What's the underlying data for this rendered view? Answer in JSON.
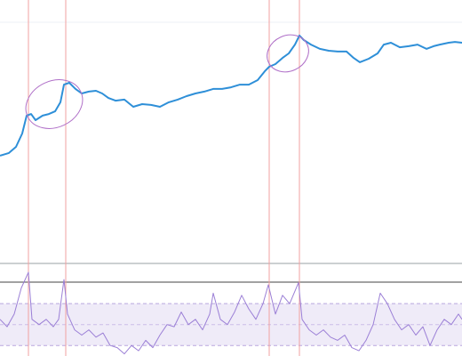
{
  "chart_data": [
    {
      "type": "line",
      "color": "#2e8fd8",
      "x": [
        0,
        10,
        18,
        25,
        30,
        35,
        40,
        48,
        55,
        62,
        68,
        72,
        78,
        85,
        92,
        100,
        108,
        115,
        122,
        130,
        140,
        150,
        160,
        170,
        180,
        190,
        200,
        210,
        220,
        230,
        240,
        250,
        260,
        270,
        280,
        290,
        298,
        303,
        310,
        318,
        325,
        332,
        337,
        342,
        350,
        360,
        370,
        380,
        390,
        398,
        405,
        415,
        425,
        432,
        440,
        450,
        460,
        470,
        480,
        488,
        495,
        505,
        512,
        520
      ],
      "values": [
        41.7,
        42.7,
        45,
        50,
        56.7,
        57.3,
        55,
        56.7,
        57.3,
        58.3,
        61.7,
        68.3,
        69,
        66.7,
        65,
        65.7,
        66,
        65,
        63.3,
        62.3,
        62.7,
        60,
        61,
        60.7,
        60,
        61.7,
        62.7,
        64,
        65,
        65.7,
        66.7,
        66.7,
        67.3,
        68.3,
        68.3,
        70,
        73.3,
        75,
        76,
        78.3,
        80,
        83.3,
        86.7,
        85,
        83.3,
        81.7,
        81,
        80.7,
        80.7,
        78.3,
        76.7,
        78,
        80,
        83.3,
        84,
        82.3,
        82.7,
        83.3,
        81.7,
        82.7,
        83.3,
        84,
        84.3,
        84
      ],
      "xlim": [
        0,
        520
      ],
      "ylim": [
        0,
        100
      ],
      "vlines": [
        32,
        74,
        303,
        337
      ]
    },
    {
      "type": "line",
      "color": "#9b7fd6",
      "x": [
        0,
        8,
        16,
        24,
        32,
        36,
        44,
        52,
        60,
        66,
        72,
        76,
        84,
        92,
        100,
        108,
        116,
        124,
        132,
        140,
        148,
        156,
        164,
        172,
        180,
        188,
        196,
        204,
        212,
        220,
        228,
        236,
        240,
        248,
        256,
        264,
        272,
        280,
        288,
        296,
        302,
        310,
        318,
        326,
        336,
        340,
        348,
        356,
        364,
        372,
        380,
        388,
        396,
        404,
        412,
        420,
        428,
        436,
        444,
        452,
        460,
        468,
        476,
        484,
        492,
        500,
        508,
        516,
        520
      ],
      "values": [
        55,
        48,
        60,
        85,
        100,
        55,
        50,
        55,
        48,
        55,
        93,
        60,
        45,
        40,
        45,
        38,
        42,
        30,
        28,
        22,
        30,
        25,
        35,
        28,
        40,
        50,
        48,
        62,
        50,
        55,
        45,
        60,
        80,
        55,
        50,
        62,
        78,
        65,
        55,
        70,
        88,
        60,
        78,
        70,
        90,
        55,
        45,
        40,
        45,
        38,
        35,
        40,
        28,
        25,
        35,
        50,
        80,
        70,
        55,
        45,
        50,
        40,
        48,
        30,
        45,
        55,
        50,
        60,
        55
      ],
      "xlim": [
        0,
        520
      ],
      "ylim": [
        20,
        105
      ],
      "band": [
        30,
        70
      ],
      "vlines": [
        32,
        74,
        303,
        337
      ]
    }
  ]
}
